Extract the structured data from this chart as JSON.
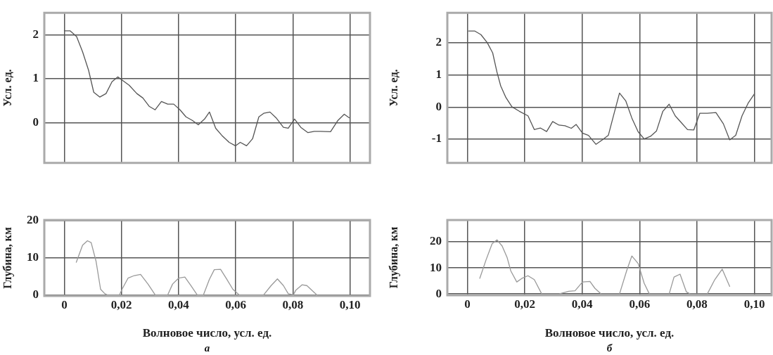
{
  "chart_data": [
    {
      "type": "line",
      "ylabel": "Усл. ед.",
      "tick_labels": "y",
      "grid": true,
      "marker": "none",
      "line_style": "solid",
      "xlim": [
        -0.007,
        0.107
      ],
      "ylim": [
        -0.92,
        2.5
      ],
      "xticks": [
        {
          "value": 0,
          "label": null
        },
        {
          "value": 0.02,
          "label": null
        },
        {
          "value": 0.04,
          "label": null
        },
        {
          "value": 0.06,
          "label": null
        },
        {
          "value": 0.08,
          "label": null
        },
        {
          "value": 0.1,
          "label": null
        }
      ],
      "yticks": [
        0,
        1,
        2
      ],
      "series": [
        {
          "color": "#555555",
          "x": [
            0,
            0.002,
            0.0043,
            0.0064,
            0.0085,
            0.0103,
            0.0124,
            0.0146,
            0.0167,
            0.0187,
            0.0206,
            0.0227,
            0.0254,
            0.0275,
            0.0297,
            0.0318,
            0.034,
            0.0362,
            0.0383,
            0.0405,
            0.0426,
            0.0448,
            0.0469,
            0.0491,
            0.0508,
            0.053,
            0.0551,
            0.0577,
            0.0599,
            0.0616,
            0.0638,
            0.0659,
            0.0681,
            0.0698,
            0.072,
            0.0741,
            0.0767,
            0.0784,
            0.0806,
            0.0828,
            0.0853,
            0.0875,
            0.0897,
            0.0932,
            0.0958,
            0.098,
            0.0997
          ],
          "values": [
            2.09,
            2.09,
            1.96,
            1.61,
            1.19,
            0.69,
            0.58,
            0.66,
            0.93,
            1.04,
            0.95,
            0.85,
            0.66,
            0.56,
            0.37,
            0.29,
            0.48,
            0.42,
            0.42,
            0.29,
            0.13,
            0.05,
            -0.05,
            0.08,
            0.24,
            -0.13,
            -0.29,
            -0.45,
            -0.53,
            -0.45,
            -0.53,
            -0.37,
            0.13,
            0.21,
            0.24,
            0.11,
            -0.11,
            -0.13,
            0.08,
            -0.11,
            -0.23,
            -0.2,
            -0.2,
            -0.21,
            0.05,
            0.19,
            0.11
          ]
        }
      ]
    },
    {
      "type": "line",
      "ylabel": "Усл. ед.",
      "tick_labels": "y",
      "grid": true,
      "marker": "none",
      "line_style": "solid",
      "xlim": [
        -0.007,
        0.106
      ],
      "ylim": [
        -1.74,
        2.94
      ],
      "xticks": [
        {
          "value": 0,
          "label": null
        },
        {
          "value": 0.02,
          "label": null
        },
        {
          "value": 0.04,
          "label": null
        },
        {
          "value": 0.06,
          "label": null
        },
        {
          "value": 0.08,
          "label": null
        },
        {
          "value": 0.1,
          "label": null
        }
      ],
      "yticks": [
        -1,
        0,
        1,
        2
      ],
      "series": [
        {
          "color": "#555555",
          "x": [
            0.0004,
            0.0026,
            0.0047,
            0.0069,
            0.0088,
            0.0103,
            0.0116,
            0.0134,
            0.0155,
            0.0181,
            0.0211,
            0.0233,
            0.0254,
            0.0276,
            0.0297,
            0.0319,
            0.034,
            0.0362,
            0.0379,
            0.0401,
            0.0422,
            0.0448,
            0.047,
            0.0491,
            0.0509,
            0.053,
            0.0552,
            0.0573,
            0.0595,
            0.0616,
            0.0638,
            0.0659,
            0.0681,
            0.0703,
            0.0724,
            0.0746,
            0.0767,
            0.0789,
            0.081,
            0.0836,
            0.0866,
            0.0892,
            0.0914,
            0.0935,
            0.0957,
            0.0978,
            0.1
          ],
          "values": [
            2.37,
            2.37,
            2.26,
            2.01,
            1.69,
            1.09,
            0.66,
            0.3,
            0.01,
            -0.13,
            -0.27,
            -0.7,
            -0.65,
            -0.76,
            -0.45,
            -0.56,
            -0.58,
            -0.66,
            -0.54,
            -0.81,
            -0.88,
            -1.16,
            -1.02,
            -0.88,
            -0.27,
            0.44,
            0.19,
            -0.34,
            -0.77,
            -0.99,
            -0.91,
            -0.74,
            -0.13,
            0.09,
            -0.27,
            -0.49,
            -0.7,
            -0.71,
            -0.19,
            -0.19,
            -0.17,
            -0.52,
            -1.02,
            -0.88,
            -0.27,
            0.12,
            0.41
          ]
        }
      ]
    },
    {
      "type": "line",
      "ylabel": "Глубина, км",
      "xlabel": "Волновое число, усл. ед.",
      "annotations": [
        "а"
      ],
      "grid": true,
      "marker": "none",
      "line_style": "solid",
      "xlim": [
        -0.007,
        0.107
      ],
      "ylim": [
        -0.3,
        20.2
      ],
      "xticks": [
        0,
        {
          "value": 0.02,
          "label": "0,02"
        },
        {
          "value": 0.04,
          "label": "0,04"
        },
        {
          "value": 0.06,
          "label": "0,06"
        },
        {
          "value": 0.08,
          "label": "0,08"
        },
        {
          "value": 0.1,
          "label": "0,10"
        }
      ],
      "yticks": [
        0,
        10,
        20
      ],
      "series": [
        {
          "color": "#999999",
          "x": [
            0.0042,
            0.0064,
            0.0081,
            0.0094,
            0.0111,
            0.0127,
            0.0142,
            0.015,
            0.0193,
            0.0202,
            0.0223,
            0.0245,
            0.0267,
            0.0293,
            0.0318,
            0.0362,
            0.0379,
            0.04,
            0.0422,
            0.0443,
            0.0465,
            0.0487,
            0.0508,
            0.0525,
            0.0547,
            0.0569,
            0.059,
            0.0612,
            0.0698,
            0.0724,
            0.0746,
            0.0767,
            0.0784,
            0.0802,
            0.081,
            0.0832,
            0.0849,
            0.0884
          ],
          "values": [
            8.8,
            13.4,
            14.6,
            14.1,
            9.1,
            1.5,
            0.3,
            0,
            0,
            1.5,
            4.5,
            5.2,
            5.5,
            2.9,
            0,
            0,
            2.9,
            4.5,
            4.8,
            2.5,
            0,
            0,
            4.2,
            6.8,
            6.9,
            4.2,
            1.5,
            0,
            0,
            2.5,
            4.3,
            2.5,
            0.3,
            0,
            1.2,
            2.7,
            2.5,
            0
          ]
        }
      ]
    },
    {
      "type": "line",
      "ylabel": "Глубина, км",
      "xlabel": "Волновое число, усл. ед.",
      "annotations": [
        "б"
      ],
      "grid": true,
      "marker": "none",
      "line_style": "solid",
      "xlim": [
        -0.007,
        0.106
      ],
      "ylim": [
        -0.5,
        28.4
      ],
      "xticks": [
        0,
        {
          "value": 0.02,
          "label": "0,02"
        },
        {
          "value": 0.04,
          "label": "0,04"
        },
        {
          "value": 0.06,
          "label": "0,06"
        },
        {
          "value": 0.08,
          "label": "0,08"
        },
        {
          "value": 0.1,
          "label": "0,10"
        }
      ],
      "yticks": [
        0,
        10,
        20
      ],
      "series": [
        {
          "color": "#999999",
          "x": [
            0.0043,
            0.0065,
            0.0086,
            0.0103,
            0.0121,
            0.0138,
            0.0151,
            0.0172,
            0.019,
            0.0211,
            0.0233,
            0.0259,
            0.0319,
            0.0353,
            0.0375,
            0.0401,
            0.0427,
            0.0444,
            0.0466,
            0.053,
            0.0556,
            0.0573,
            0.0595,
            0.0616,
            0.0634,
            0.0703,
            0.072,
            0.0741,
            0.0763,
            0.0776,
            0.0836,
            0.0862,
            0.0888,
            0.0914
          ],
          "values": [
            6,
            13.1,
            19.3,
            20.8,
            18.4,
            14.1,
            8.9,
            4.6,
            6,
            7,
            5.5,
            0,
            0,
            1,
            1.2,
            4.6,
            4.8,
            2.2,
            0,
            0,
            9.3,
            14.6,
            11.7,
            4.1,
            0,
            0,
            6.5,
            7.6,
            0.8,
            0,
            0,
            5.5,
            9.5,
            2.9
          ]
        }
      ]
    }
  ]
}
